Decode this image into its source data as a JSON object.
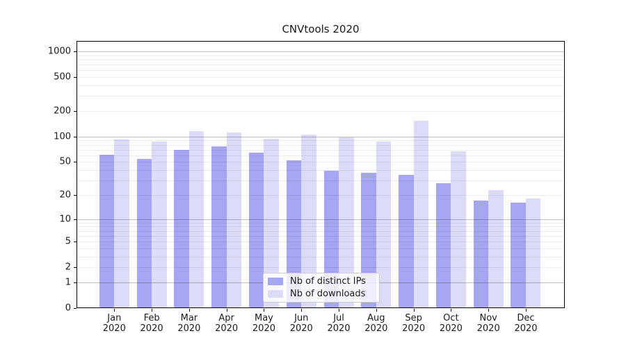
{
  "chart_data": {
    "type": "bar",
    "title": "CNVtools 2020",
    "categories": [
      "Jan",
      "Feb",
      "Mar",
      "Apr",
      "May",
      "Jun",
      "Jul",
      "Aug",
      "Sep",
      "Oct",
      "Nov",
      "Dec"
    ],
    "x_tick_year": "2020",
    "series": [
      {
        "name": "Nb of distinct IPs",
        "color": "#a6a6f4",
        "values": [
          61,
          54,
          70,
          77,
          64,
          52,
          39,
          37,
          35,
          28,
          17,
          16
        ]
      },
      {
        "name": "Nb of downloads",
        "color": "#dcdcf9",
        "values": [
          92,
          88,
          115,
          111,
          95,
          105,
          98,
          87,
          154,
          67,
          23,
          18
        ]
      }
    ],
    "xlabel": "",
    "ylabel": "",
    "yscale": "log1p",
    "ylim": [
      0,
      1324
    ],
    "yticks": [
      1000,
      500,
      200,
      100,
      50,
      20,
      10,
      5,
      2,
      1,
      0
    ],
    "grid": true,
    "grid_major_values": [
      1,
      10,
      100,
      1000
    ],
    "grid_minor_values": [
      2,
      3,
      4,
      5,
      6,
      7,
      8,
      9,
      20,
      30,
      40,
      50,
      60,
      70,
      80,
      90,
      200,
      300,
      400,
      500,
      600,
      700,
      800,
      900
    ],
    "legend_position": "lower center"
  },
  "colors": {
    "grid_major": "rgba(0,0,0,0.25)",
    "grid_minor": "rgba(0,0,0,0.07)",
    "axis": "#000000",
    "text": "#1a1a1a",
    "legend_border": "#cccccc"
  }
}
